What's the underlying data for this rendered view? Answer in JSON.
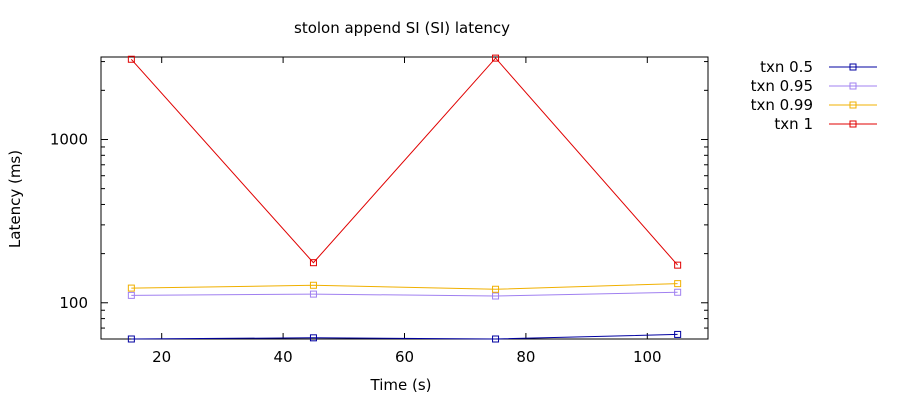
{
  "chart_data": {
    "type": "line",
    "title": "stolon append SI (SI)  latency",
    "xlabel": "Time (s)",
    "ylabel": "Latency (ms)",
    "xlim": [
      10,
      110
    ],
    "ylim": [
      60,
      3200
    ],
    "yscale": "log",
    "xticks": [
      20,
      40,
      60,
      80,
      100
    ],
    "xtick_labels": [
      "20",
      "40",
      "60",
      "80",
      "100"
    ],
    "yticks": [
      100,
      1000
    ],
    "ytick_labels": [
      "100",
      "1000"
    ],
    "grid": false,
    "legend_position": "outside-right",
    "series": [
      {
        "name": "txn 0.5",
        "color": "#0000a0",
        "x": [
          15,
          45,
          75,
          105
        ],
        "y": [
          60,
          61,
          60,
          64
        ]
      },
      {
        "name": "txn 0.95",
        "color": "#a080f0",
        "x": [
          15,
          45,
          75,
          105
        ],
        "y": [
          111,
          113,
          110,
          116
        ]
      },
      {
        "name": "txn 0.99",
        "color": "#f0b000",
        "x": [
          15,
          45,
          75,
          105
        ],
        "y": [
          123,
          128,
          121,
          131
        ]
      },
      {
        "name": "txn 1",
        "color": "#e00000",
        "x": [
          15,
          45,
          75,
          105
        ],
        "y": [
          3100,
          176,
          3150,
          170
        ]
      }
    ]
  }
}
